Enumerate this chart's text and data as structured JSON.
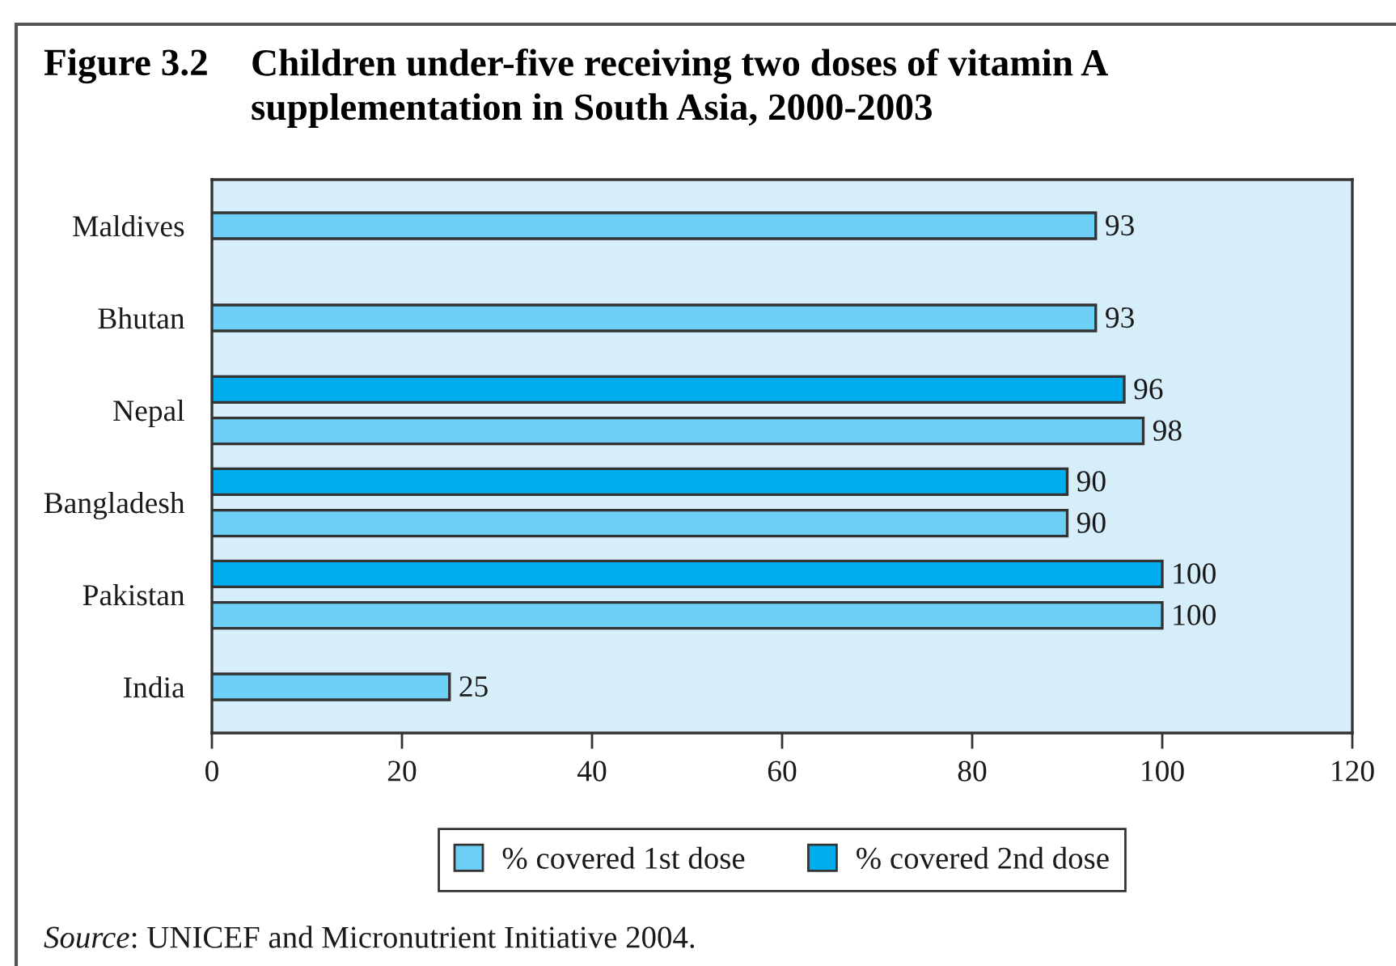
{
  "chart_data": {
    "type": "bar",
    "orientation": "horizontal",
    "title": "Figure 3.2 Children under-five receiving two doses of vitamin A\nsupplementation in South Asia, 2000-2003",
    "categories": [
      "Maldives",
      "Bhutan",
      "Nepal",
      "Bangladesh",
      "Pakistan",
      "India"
    ],
    "series": [
      {
        "name": "% covered 1st dose",
        "color": "#6dcff6",
        "values": [
          93,
          93,
          98,
          90,
          100,
          25
        ]
      },
      {
        "name": "% covered 2nd dose",
        "color": "#00aeef",
        "values": [
          null,
          null,
          96,
          90,
          100,
          null
        ]
      }
    ],
    "xlim": [
      0,
      120
    ],
    "xticks": [
      0,
      20,
      40,
      60,
      80,
      100,
      120
    ],
    "data_labels": true,
    "legend": "bottom",
    "annotations": [
      "Source: UNICEF and Micronutrient Initiative 2004."
    ]
  }
}
